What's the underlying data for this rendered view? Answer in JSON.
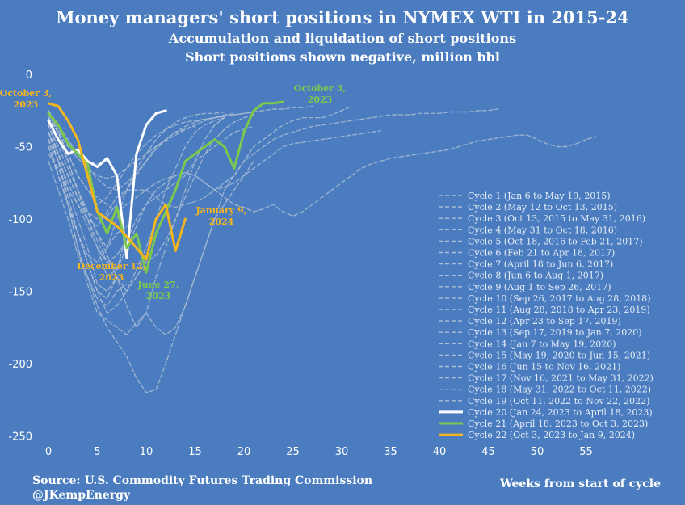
{
  "chart_data": {
    "type": "line",
    "title": "Money managers' short positions in  NYMEX WTI in 2015-24",
    "subtitle1": "Accumulation and liquidation of short positions",
    "subtitle2": "Short positions shown negative, million bbl",
    "xlabel": "Weeks from start of cycle",
    "xlim": [
      -1,
      60
    ],
    "ylim": [
      -250,
      0
    ],
    "x_ticks": [
      0,
      5,
      10,
      15,
      20,
      25,
      30,
      35,
      40,
      45,
      50,
      55
    ],
    "y_ticks": [
      0,
      -50,
      -100,
      -150,
      -200,
      -250
    ],
    "grid": false,
    "legend_position": "bottom-right",
    "source": "Source: U.S. Commodity Futures Trading Commission",
    "handle": "@JKempEnergy",
    "colors": {
      "background": "#4a7cbf",
      "history": "#aebfd6",
      "cycle20": "#ffffff",
      "cycle21": "#7ec850",
      "cycle22": "#f5b51f"
    },
    "series": [
      {
        "name": "Cycle 1 (Jan 6 to May 19, 2015)",
        "color": "#aebfd6",
        "dashed": true,
        "values": [
          -35,
          -55,
          -80,
          -100,
          -120,
          -145,
          -150,
          -140,
          -160,
          -175,
          -165,
          -140,
          -120,
          -100,
          -80,
          -60,
          -45,
          -35,
          -30
        ]
      },
      {
        "name": "Cycle 2 (May 12 to Oct 13, 2015)",
        "color": "#aebfd6",
        "dashed": true,
        "values": [
          -40,
          -60,
          -90,
          -120,
          -140,
          -160,
          -175,
          -185,
          -195,
          -210,
          -220,
          -218,
          -200,
          -180,
          -160,
          -140,
          -120,
          -100,
          -90,
          -80,
          -70,
          -60
        ]
      },
      {
        "name": "Cycle 3 (Oct 13, 2015 to May 31, 2016)",
        "color": "#aebfd6",
        "dashed": true,
        "values": [
          -50,
          -70,
          -90,
          -120,
          -145,
          -165,
          -170,
          -175,
          -180,
          -172,
          -165,
          -175,
          -180,
          -175,
          -160,
          -140,
          -120,
          -100,
          -80,
          -70,
          -60,
          -50,
          -45,
          -40,
          -35,
          -32,
          -30,
          -30,
          -30,
          -28,
          -25,
          -22
        ]
      },
      {
        "name": "Cycle 4 (May 31 to Oct 18, 2016)",
        "color": "#aebfd6",
        "dashed": true,
        "values": [
          -45,
          -70,
          -90,
          -110,
          -130,
          -150,
          -165,
          -160,
          -150,
          -140,
          -130,
          -125,
          -115,
          -100,
          -85,
          -70,
          -55,
          -45,
          -38,
          -33,
          -30,
          -28
        ]
      },
      {
        "name": "Cycle 5 (Oct 18, 2016 to Feb 21, 2017)",
        "color": "#aebfd6",
        "dashed": true,
        "values": [
          -30,
          -45,
          -60,
          -80,
          -95,
          -110,
          -120,
          -100,
          -80,
          -65,
          -55,
          -45,
          -38,
          -33,
          -30,
          -28,
          -27,
          -27,
          -26
        ]
      },
      {
        "name": "Cycle 6 (Feb 21 to Apr 18, 2017)",
        "color": "#aebfd6",
        "dashed": true,
        "values": [
          -25,
          -40,
          -60,
          -80,
          -100,
          -120,
          -140,
          -135,
          -110
        ]
      },
      {
        "name": "Cycle 7 (April 18 to Jun 6, 2017)",
        "color": "#aebfd6",
        "dashed": true,
        "values": [
          -40,
          -60,
          -85,
          -110,
          -130,
          -150,
          -155,
          -140
        ]
      },
      {
        "name": "Cycle 8  (Jun 6 to Aug 1, 2017)",
        "color": "#aebfd6",
        "dashed": true,
        "values": [
          -60,
          -80,
          -100,
          -125,
          -140,
          -155,
          -160,
          -150,
          -145
        ]
      },
      {
        "name": "Cycle 9 (Aug 1 to Sep 26, 2017)",
        "color": "#aebfd6",
        "dashed": true,
        "values": [
          -50,
          -70,
          -90,
          -110,
          -125,
          -130,
          -120,
          -110,
          -105
        ]
      },
      {
        "name": "Cycle 10 (Sep 26, 2017 to Aug 28, 2018)",
        "color": "#aebfd6",
        "dashed": true,
        "values": [
          -55,
          -65,
          -80,
          -90,
          -100,
          -105,
          -95,
          -85,
          -80,
          -80,
          -80,
          -85,
          -90,
          -92,
          -90,
          -88,
          -85,
          -80,
          -75,
          -70,
          -60,
          -55,
          -50,
          -45,
          -42,
          -40,
          -38,
          -36,
          -35,
          -34,
          -33,
          -32,
          -31,
          -30,
          -29,
          -28,
          -28,
          -28,
          -27,
          -27,
          -27,
          -26,
          -26,
          -26,
          -25,
          -25,
          -24
        ]
      },
      {
        "name": "Cycle 11 (Aug 28, 2018 to Apr 23, 2019)",
        "color": "#aebfd6",
        "dashed": true,
        "values": [
          -40,
          -55,
          -70,
          -85,
          -100,
          -115,
          -130,
          -135,
          -120,
          -105,
          -90,
          -80,
          -75,
          -70,
          -68,
          -70,
          -75,
          -80,
          -78,
          -75,
          -70,
          -65,
          -60,
          -55,
          -50,
          -48,
          -47,
          -46,
          -45,
          -44,
          -43,
          -42,
          -41,
          -40,
          -39
        ]
      },
      {
        "name": "Cycle 12 (Apr 23 to Sep 17, 2019)",
        "color": "#aebfd6",
        "dashed": true,
        "values": [
          -45,
          -60,
          -75,
          -90,
          -105,
          -120,
          -130,
          -125,
          -115,
          -100,
          -90,
          -85,
          -80,
          -75,
          -70,
          -60,
          -55,
          -50,
          -45,
          -40,
          -38,
          -36
        ]
      },
      {
        "name": "Cycle 13 (Sep 17, 2019  to Jan 7, 2020)",
        "color": "#aebfd6",
        "dashed": true,
        "values": [
          -40,
          -55,
          -70,
          -85,
          -95,
          -100,
          -98,
          -90,
          -80,
          -70,
          -60,
          -50,
          -45,
          -40,
          -38,
          -36
        ]
      },
      {
        "name": "Cycle 14 (Jan 7 to May 19, 2020)",
        "color": "#aebfd6",
        "dashed": true,
        "values": [
          -35,
          -50,
          -65,
          -80,
          -95,
          -110,
          -125,
          -140,
          -150,
          -135,
          -120,
          -100,
          -80,
          -65,
          -50,
          -40,
          -35,
          -32,
          -30
        ]
      },
      {
        "name": "Cycle 15 (May 19, 2020 to Jun 15, 2021)",
        "color": "#aebfd6",
        "dashed": true,
        "values": [
          -30,
          -40,
          -55,
          -70,
          -80,
          -85,
          -90,
          -95,
          -90,
          -85,
          -80,
          -75,
          -72,
          -70,
          -68,
          -70,
          -75,
          -80,
          -85,
          -90,
          -92,
          -95,
          -93,
          -90,
          -95,
          -98,
          -95,
          -90,
          -85,
          -80,
          -75,
          -70,
          -65,
          -62,
          -60,
          -58,
          -57,
          -56,
          -55,
          -54,
          -53,
          -52,
          -50,
          -48,
          -46,
          -45,
          -44,
          -43,
          -42,
          -42,
          -45,
          -48,
          -50,
          -50,
          -48,
          -45,
          -43
        ]
      },
      {
        "name": "Cycle 16 (Jun 15 to Nov 16, 2021)",
        "color": "#aebfd6",
        "dashed": true,
        "values": [
          -30,
          -40,
          -55,
          -70,
          -80,
          -90,
          -85,
          -75,
          -65,
          -55,
          -48,
          -42,
          -38,
          -35,
          -33,
          -32,
          -31,
          -30,
          -29,
          -28,
          -27,
          -26
        ]
      },
      {
        "name": "Cycle 17 (Nov 16, 2021 to May 31, 2022)",
        "color": "#aebfd6",
        "dashed": true,
        "values": [
          -25,
          -35,
          -45,
          -55,
          -65,
          -72,
          -78,
          -80,
          -75,
          -68,
          -60,
          -52,
          -45,
          -40,
          -36,
          -33,
          -31,
          -30,
          -29,
          -28,
          -27,
          -26,
          -25,
          -24,
          -24,
          -23,
          -23,
          -22
        ]
      },
      {
        "name": "Cycle 18 (May 31, 2022 to Oct 11, 2022)",
        "color": "#aebfd6",
        "dashed": true,
        "values": [
          -30,
          -40,
          -50,
          -58,
          -65,
          -70,
          -72,
          -70,
          -65,
          -60,
          -55,
          -50,
          -46,
          -42,
          -38,
          -35,
          -32,
          -30,
          -28,
          -27
        ]
      },
      {
        "name": "Cycle 19 (Oct 11, 2022 to Nov 22, 2022)",
        "color": "#aebfd6",
        "dashed": true,
        "values": [
          -28,
          -38,
          -48,
          -55,
          -60,
          -62,
          -60
        ]
      },
      {
        "name": "Cycle 20 (Jan 24, 2023 to April 18, 2023)",
        "color": "#ffffff",
        "dashed": false,
        "values": [
          -32,
          -45,
          -55,
          -52,
          -60,
          -64,
          -58,
          -70,
          -127,
          -55,
          -35,
          -27,
          -25
        ]
      },
      {
        "name": "Cycle 21 (April 18, 2023 to Oct 3, 2023)",
        "color": "#7ec850",
        "dashed": false,
        "values": [
          -27,
          -35,
          -48,
          -55,
          -62,
          -95,
          -110,
          -92,
          -120,
          -110,
          -137,
          -110,
          -95,
          -80,
          -60,
          -55,
          -50,
          -45,
          -50,
          -65,
          -40,
          -25,
          -20,
          -20,
          -19
        ]
      },
      {
        "name": "Cycle 22 (Oct 3, 2023 to Jan 9, 2024)",
        "color": "#f5b51f",
        "dashed": false,
        "values": [
          -20,
          -22,
          -32,
          -45,
          -70,
          -95,
          -100,
          -105,
          -112,
          -120,
          -128,
          -100,
          -90,
          -122,
          -100
        ]
      }
    ],
    "annotations": [
      {
        "text_line1": "October 3,",
        "text_line2": "2023",
        "color": "#f5b51f"
      },
      {
        "text_line1": "October 3,",
        "text_line2": "2023",
        "color": "#7ec850"
      },
      {
        "text_line1": "December 12,",
        "text_line2": "2023",
        "color": "#f5b51f"
      },
      {
        "text_line1": "June 27,",
        "text_line2": "2023",
        "color": "#7ec850"
      },
      {
        "text_line1": "January 9,",
        "text_line2": "2024",
        "color": "#f5b51f"
      }
    ]
  }
}
